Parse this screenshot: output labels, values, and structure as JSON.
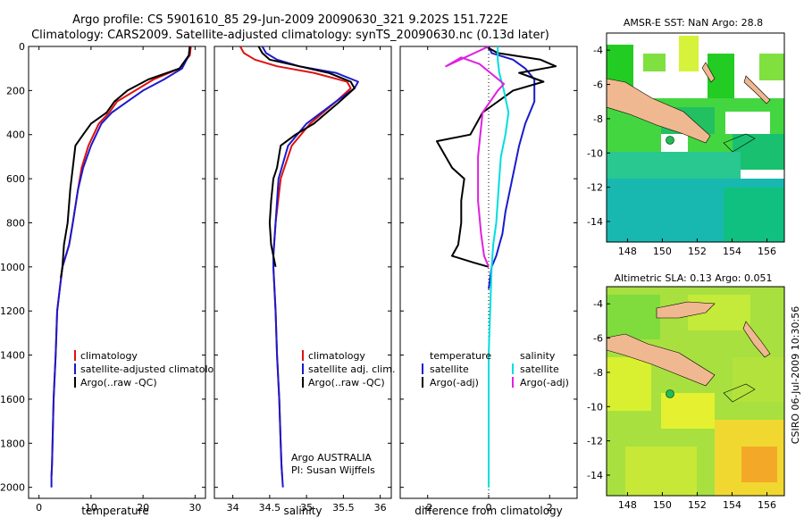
{
  "header": {
    "title_line1": "Argo profile: CS 5901610_85 29-Jun-2009 20090630_321 9.202S 151.722E",
    "title_line2": "Climatology: CARS2009. Satellite-adjusted climatology: synTS_20090630.nc (0.13d later)"
  },
  "side_label": "CSIRO 06-Jul-2009 10:30:56",
  "colors": {
    "climatology": "#e01010",
    "satellite": "#1a1acc",
    "argo": "#000000",
    "sat_diff": "#00dede",
    "argo_sal_diff": "#e020e0",
    "land": "#f0b890"
  },
  "chart_data": [
    {
      "type": "line",
      "panel": "temperature",
      "xlabel": "temperature",
      "ylabel": "",
      "xlim": [
        -2,
        32
      ],
      "ylim": [
        2050,
        0
      ],
      "xticks": [
        0,
        10,
        20,
        30
      ],
      "yticks": [
        0,
        200,
        400,
        600,
        800,
        1000,
        1200,
        1400,
        1600,
        1800,
        2000
      ],
      "legend": [
        "climatology",
        "satellite-adjusted climatology",
        "Argo(..raw -QC)"
      ],
      "series": [
        {
          "name": "climatology",
          "color": "climatology",
          "x": [
            29.2,
            29.0,
            27.0,
            22.0,
            18.5,
            15.0,
            13.5,
            11.5,
            9.5,
            8.2,
            7.5,
            6.5,
            5.8,
            4.5,
            4.0,
            3.5,
            3.2,
            2.8,
            2.6,
            2.5,
            2.4
          ],
          "y": [
            0,
            40,
            100,
            150,
            200,
            250,
            300,
            350,
            450,
            550,
            650,
            800,
            900,
            1000,
            1100,
            1200,
            1400,
            1600,
            1800,
            1900,
            1950
          ]
        },
        {
          "name": "satellite-adjusted climatology",
          "color": "satellite",
          "x": [
            29.0,
            28.8,
            27.5,
            24.0,
            20.0,
            17.0,
            14.0,
            12.0,
            10.0,
            8.5,
            7.5,
            6.5,
            5.8,
            4.5,
            4.0,
            3.5,
            3.2,
            2.8,
            2.6,
            2.5,
            2.4,
            2.4
          ],
          "y": [
            0,
            40,
            100,
            150,
            200,
            250,
            300,
            350,
            450,
            550,
            650,
            800,
            900,
            1000,
            1100,
            1200,
            1400,
            1600,
            1800,
            1900,
            1950,
            2000
          ]
        },
        {
          "name": "Argo(..raw -QC)",
          "color": "argo",
          "x": [
            29.0,
            28.8,
            27.0,
            21.0,
            17.0,
            14.5,
            13.0,
            10.0,
            8.5,
            7.0,
            6.5,
            6.0,
            5.5,
            4.8,
            4.5,
            4.2
          ],
          "y": [
            0,
            40,
            100,
            150,
            200,
            250,
            300,
            350,
            400,
            450,
            550,
            650,
            800,
            900,
            1000,
            1050
          ]
        }
      ]
    },
    {
      "type": "line",
      "panel": "salinity",
      "xlabel": "salinity",
      "ylabel": "",
      "xlim": [
        33.75,
        36.15
      ],
      "ylim": [
        2050,
        0
      ],
      "xticks": [
        34,
        34.5,
        35,
        35.5,
        36
      ],
      "yticks": [],
      "legend": [
        "climatology",
        "satellite adj. clim.",
        "Argo(..raw -QC)"
      ],
      "annotation": [
        "Argo AUSTRALIA",
        "PI: Susan Wijffels"
      ],
      "series": [
        {
          "name": "climatology",
          "color": "climatology",
          "x": [
            34.1,
            34.15,
            34.3,
            34.6,
            35.1,
            35.55,
            35.6,
            35.4,
            35.05,
            34.8,
            34.65,
            34.58,
            34.55,
            34.55,
            34.58,
            34.6,
            34.63,
            34.65,
            34.66,
            34.67
          ],
          "y": [
            0,
            30,
            60,
            90,
            120,
            160,
            190,
            250,
            350,
            450,
            600,
            800,
            950,
            1000,
            1200,
            1400,
            1600,
            1800,
            1900,
            1950
          ]
        },
        {
          "name": "satellite adj. clim.",
          "color": "satellite",
          "x": [
            34.4,
            34.45,
            34.6,
            34.9,
            35.4,
            35.7,
            35.65,
            35.4,
            35.0,
            34.75,
            34.62,
            34.58,
            34.55,
            34.55,
            34.58,
            34.6,
            34.63,
            34.65,
            34.66,
            34.67,
            34.68
          ],
          "y": [
            0,
            30,
            60,
            90,
            120,
            160,
            190,
            250,
            350,
            450,
            600,
            800,
            950,
            1000,
            1200,
            1400,
            1600,
            1800,
            1900,
            1950,
            2000
          ]
        },
        {
          "name": "Argo(..raw -QC)",
          "color": "argo",
          "x": [
            34.35,
            34.4,
            34.5,
            34.9,
            35.3,
            35.6,
            35.65,
            35.45,
            35.1,
            34.85,
            34.65,
            34.6,
            34.55,
            34.52,
            34.5,
            34.52,
            34.55,
            34.58
          ],
          "y": [
            0,
            30,
            60,
            90,
            120,
            160,
            190,
            250,
            350,
            400,
            450,
            550,
            600,
            700,
            800,
            900,
            950,
            1000
          ]
        }
      ]
    },
    {
      "type": "line",
      "panel": "difference",
      "xlabel": "difference from climatology",
      "ylabel": "",
      "xlim": [
        -2.9,
        2.9
      ],
      "ylim": [
        2050,
        0
      ],
      "xticks": [
        -2,
        0,
        2
      ],
      "yticks": [],
      "legend_titles": [
        "temperature",
        "salinity"
      ],
      "legend": [
        "satellite",
        "Argo(-adj)",
        "satellite",
        "Argo(-adj)"
      ],
      "series": [
        {
          "name": "satellite",
          "group": "temperature",
          "color": "satellite",
          "x": [
            0.0,
            0.1,
            0.8,
            1.2,
            1.5,
            1.5,
            1.2,
            1.0,
            0.85,
            0.7,
            0.55,
            0.45,
            0.35,
            0.25,
            0.1,
            0.05,
            0.0
          ],
          "y": [
            0,
            30,
            60,
            100,
            150,
            250,
            350,
            450,
            550,
            650,
            750,
            850,
            900,
            950,
            1000,
            1050,
            1100
          ]
        },
        {
          "name": "Argo(-adj)",
          "group": "temperature",
          "color": "argo",
          "x": [
            -0.1,
            0.3,
            1.7,
            2.2,
            1.0,
            1.8,
            0.8,
            -0.2,
            -0.6,
            -1.7,
            -1.2,
            -0.8,
            -0.9,
            -0.9,
            -1.0,
            -1.2,
            -0.5,
            0.0
          ],
          "y": [
            0,
            30,
            60,
            90,
            120,
            160,
            200,
            300,
            400,
            430,
            550,
            600,
            700,
            800,
            900,
            950,
            980,
            1000
          ]
        },
        {
          "name": "satellite",
          "group": "salinity",
          "color": "sat_diff",
          "x": [
            0.3,
            0.3,
            0.35,
            0.5,
            0.65,
            0.55,
            0.4,
            0.35,
            0.3,
            0.25,
            0.15,
            0.1,
            0.05,
            0.0,
            0.0,
            0.0,
            0.0
          ],
          "y": [
            0,
            60,
            120,
            200,
            300,
            400,
            500,
            600,
            700,
            800,
            900,
            1000,
            1200,
            1400,
            1600,
            1800,
            2000
          ]
        },
        {
          "name": "Argo(-adj)",
          "group": "salinity",
          "color": "argo_sal_diff",
          "x": [
            0.0,
            -1.4,
            -0.9,
            -0.3,
            0.5,
            0.3,
            -0.2,
            -0.35,
            -0.35,
            -0.25,
            -0.15,
            0.0
          ],
          "y": [
            0,
            90,
            50,
            80,
            170,
            200,
            300,
            500,
            700,
            850,
            950,
            1000
          ]
        }
      ]
    },
    {
      "type": "heatmap",
      "panel": "map-sst",
      "title": "AMSR-E SST: NaN Argo: 28.8",
      "xlim": [
        146.8,
        157.0
      ],
      "ylim": [
        -15.2,
        -3.0
      ],
      "xticks": [
        148,
        150,
        152,
        154,
        156
      ],
      "yticks": [
        -4,
        -6,
        -8,
        -10,
        -12,
        -14
      ],
      "argo_position": {
        "lon": 151.722,
        "lat": -9.202
      }
    },
    {
      "type": "heatmap",
      "panel": "map-sla",
      "title": "Altimetric SLA: 0.13 Argo: 0.051",
      "xlim": [
        146.8,
        157.0
      ],
      "ylim": [
        -15.2,
        -3.0
      ],
      "xticks": [
        148,
        150,
        152,
        154,
        156
      ],
      "yticks": [
        -4,
        -6,
        -8,
        -10,
        -12,
        -14
      ],
      "argo_position": {
        "lon": 151.722,
        "lat": -9.202
      }
    }
  ]
}
